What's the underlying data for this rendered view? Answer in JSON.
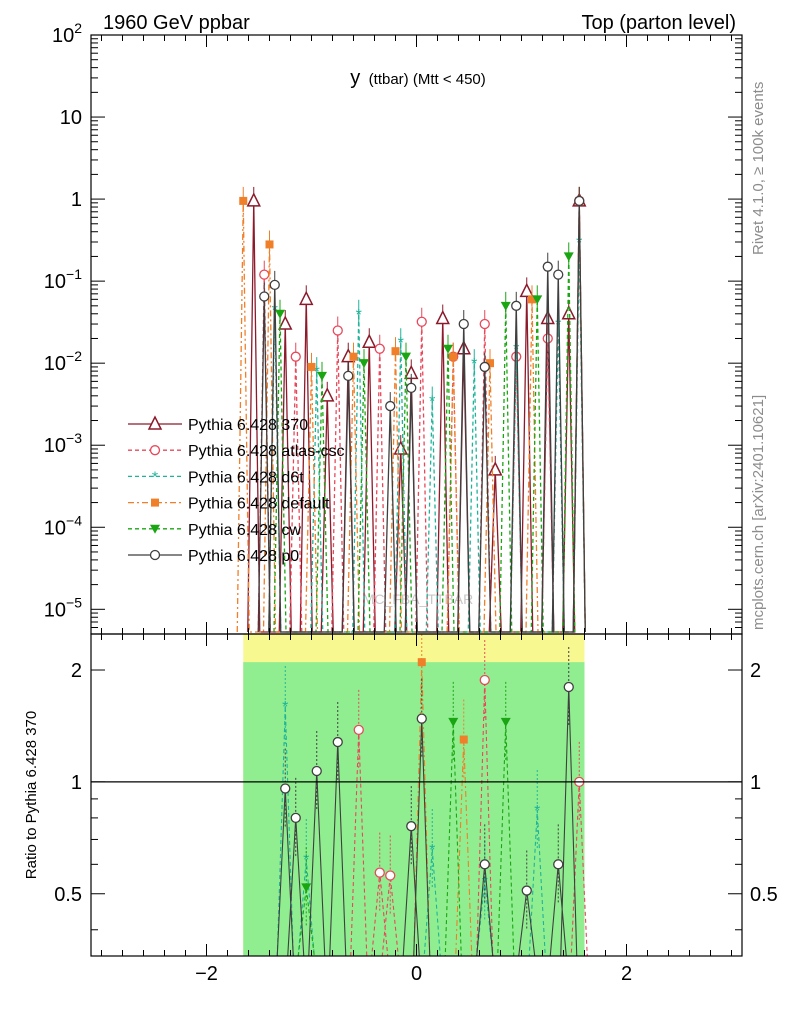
{
  "header": {
    "left": "1960 GeV ppbar",
    "right": "Top (parton level)"
  },
  "side_text": {
    "rivet": "Rivet 4.1.0, ≥ 100k events",
    "source": "mcplots.cern.ch [arXiv:2401.10621]"
  },
  "watermark": "MC_FBA_TTBAR",
  "chart_data": {
    "type": "scatter",
    "title": "y (ttbar) (Mtt < 450)",
    "title_main": "y",
    "title_sub": "(ttbar) (Mtt < 450)",
    "xlabel": "",
    "ylabel": "",
    "xlim": [
      -3.1,
      3.1
    ],
    "ylim": [
      5e-06,
      100
    ],
    "yscale": "log",
    "x_ticks": [
      -2,
      0,
      2
    ],
    "x_tick_labels": [
      "−2",
      "0",
      "2"
    ],
    "y_tick_labels": [
      "10^-5",
      "10^-4",
      "10^-3",
      "10^-2",
      "10^-1",
      "1",
      "10",
      "10^2"
    ],
    "legend_position": "left",
    "series": [
      {
        "name": "Pythia 6.428 370",
        "color": "#8b1a2b",
        "marker": "triangle-open",
        "dash": "solid",
        "x": [
          -1.55,
          -1.25,
          -1.05,
          -0.85,
          -0.65,
          -0.45,
          -0.15,
          -0.05,
          0.25,
          0.45,
          0.75,
          1.05,
          1.25,
          1.45,
          1.55
        ],
        "y": [
          0.95,
          0.03,
          0.06,
          0.004,
          0.012,
          0.018,
          0.0009,
          0.0075,
          0.035,
          0.015,
          0.0005,
          0.075,
          0.035,
          0.04,
          0.95
        ]
      },
      {
        "name": "Pythia 6.428 atlas-csc",
        "color": "#e8485a",
        "marker": "circle-open",
        "dash": "dashed",
        "x": [
          -1.45,
          -1.15,
          -0.75,
          -0.35,
          0.05,
          0.35,
          0.65,
          0.95,
          1.25,
          1.55
        ],
        "y": [
          0.12,
          0.012,
          0.025,
          0.015,
          0.032,
          0.012,
          0.03,
          0.012,
          0.02,
          0.95
        ]
      },
      {
        "name": "Pythia 6.428 d6t",
        "color": "#20b39a",
        "marker": "star",
        "dash": "dashed",
        "x": [
          -1.35,
          -0.95,
          -0.55,
          -0.15,
          0.15,
          0.55,
          0.95,
          1.35,
          1.55
        ],
        "y": [
          0.045,
          0.008,
          0.04,
          0.018,
          0.0035,
          0.01,
          0.015,
          0.03,
          0.3
        ]
      },
      {
        "name": "Pythia 6.428 default",
        "color": "#f07f2a",
        "marker": "square",
        "dash": "dashdot",
        "x": [
          -1.65,
          -1.4,
          -1.0,
          -0.6,
          -0.2,
          0.35,
          0.7,
          1.1,
          1.55
        ],
        "y": [
          0.95,
          0.28,
          0.009,
          0.012,
          0.014,
          0.012,
          0.01,
          0.06,
          0.95
        ]
      },
      {
        "name": "Pythia 6.428 cw",
        "color": "#1aa512",
        "marker": "triangle-down",
        "dash": "dashed",
        "x": [
          -1.3,
          -0.9,
          -0.5,
          -0.1,
          0.3,
          0.85,
          1.15,
          1.45
        ],
        "y": [
          0.04,
          0.007,
          0.01,
          0.012,
          0.015,
          0.05,
          0.06,
          0.2
        ]
      },
      {
        "name": "Pythia 6.428 p0",
        "color": "#3f3f3f",
        "marker": "circle-open",
        "dash": "solid",
        "x": [
          -1.45,
          -1.35,
          -0.65,
          -0.25,
          -0.05,
          0.45,
          0.65,
          0.95,
          1.25,
          1.35,
          1.55
        ],
        "y": [
          0.065,
          0.09,
          0.007,
          0.003,
          0.005,
          0.03,
          0.009,
          0.05,
          0.15,
          0.12,
          0.95
        ]
      }
    ],
    "ratio": {
      "ylabel": "Ratio to Pythia 6.428 370",
      "ylim": [
        0.34,
        2.5
      ],
      "y_ticks": [
        0.5,
        1,
        2
      ],
      "y_tick_labels": [
        "0.5",
        "1",
        "2"
      ],
      "band_x": [
        -1.65,
        1.6
      ],
      "points": [
        {
          "series": "Pythia 6.428 atlas-csc",
          "x": [
            -0.55,
            -0.35,
            -0.25,
            0.65,
            1.55
          ],
          "y": [
            1.38,
            0.57,
            0.56,
            1.88,
            1.0
          ]
        },
        {
          "series": "Pythia 6.428 d6t",
          "x": [
            -1.25,
            -1.05,
            0.15,
            0.65,
            1.15
          ],
          "y": [
            1.6,
            0.62,
            0.66,
            0.54,
            0.84
          ]
        },
        {
          "series": "Pythia 6.428 default",
          "x": [
            0.05,
            0.45
          ],
          "y": [
            2.1,
            1.3
          ]
        },
        {
          "series": "Pythia 6.428 cw",
          "x": [
            -1.05,
            0.35,
            0.85
          ],
          "y": [
            0.52,
            1.45,
            1.45
          ]
        },
        {
          "series": "Pythia 6.428 p0",
          "x": [
            -1.25,
            -1.15,
            -0.95,
            -0.75,
            -0.05,
            0.05,
            0.65,
            1.05,
            1.35,
            1.45
          ],
          "y": [
            0.96,
            0.8,
            1.07,
            1.28,
            0.76,
            1.48,
            0.6,
            0.51,
            0.6,
            1.8
          ]
        }
      ]
    }
  }
}
